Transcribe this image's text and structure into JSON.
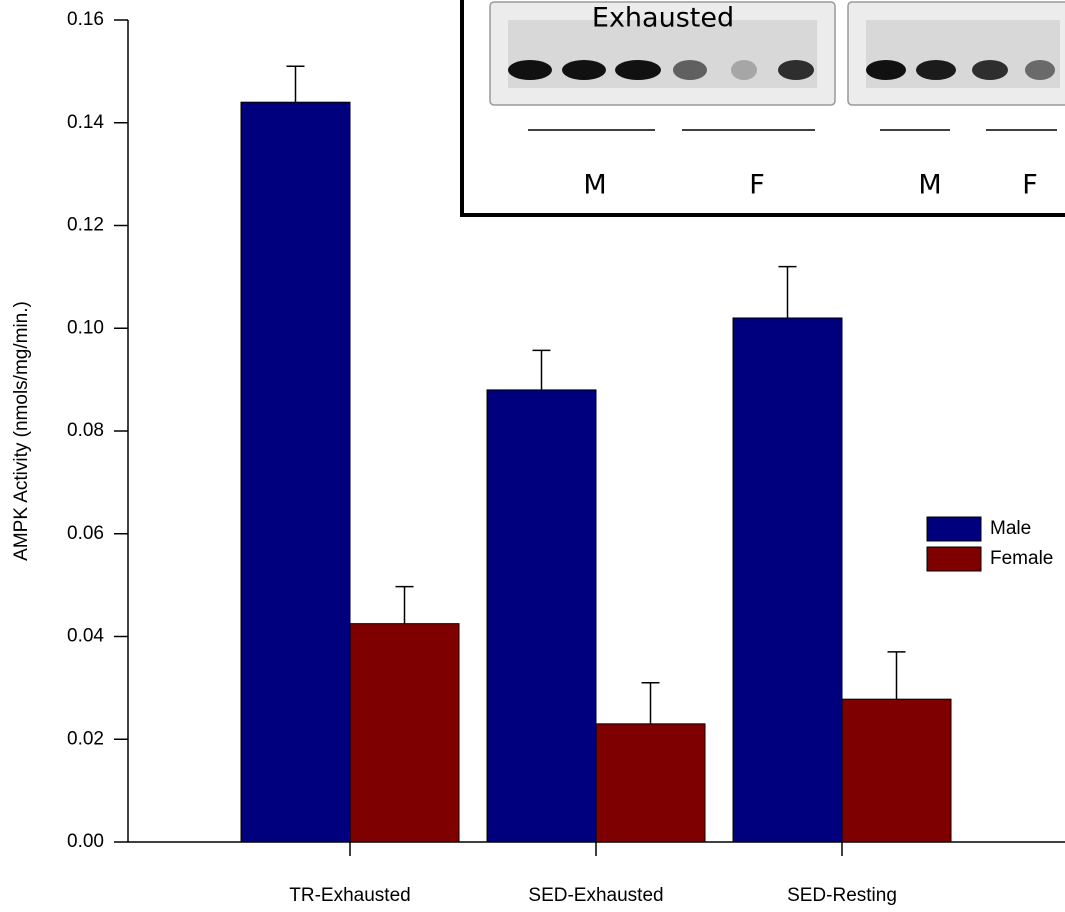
{
  "chart_data": {
    "type": "bar",
    "y_label": "AMPK Activity (nmols/mg/min.)",
    "categories": [
      "TR-Exhausted",
      "SED-Exhausted",
      "SED-Resting"
    ],
    "series": [
      {
        "name": "Male",
        "color": "#00007f",
        "values": [
          0.144,
          0.088,
          0.102
        ],
        "errors": [
          0.007,
          0.0077,
          0.01
        ]
      },
      {
        "name": "Female",
        "color": "#7f0000",
        "values": [
          0.0425,
          0.023,
          0.0278
        ],
        "errors": [
          0.0072,
          0.008,
          0.0092
        ]
      }
    ],
    "ylim": [
      0,
      0.16
    ],
    "yticks": [
      {
        "value": 0,
        "label": "0.00"
      },
      {
        "value": 0.02,
        "label": "0.02"
      },
      {
        "value": 0.04,
        "label": "0.04"
      },
      {
        "value": 0.06,
        "label": "0.06"
      },
      {
        "value": 0.08,
        "label": "0.08"
      },
      {
        "value": 0.1,
        "label": "0.10"
      },
      {
        "value": 0.12,
        "label": "0.12"
      },
      {
        "value": 0.14,
        "label": "0.14"
      },
      {
        "value": 0.16,
        "label": "0.16"
      }
    ],
    "legend": "right"
  },
  "inset": {
    "title": "Exhausted",
    "labels": [
      "M",
      "F",
      "M",
      "F"
    ]
  }
}
